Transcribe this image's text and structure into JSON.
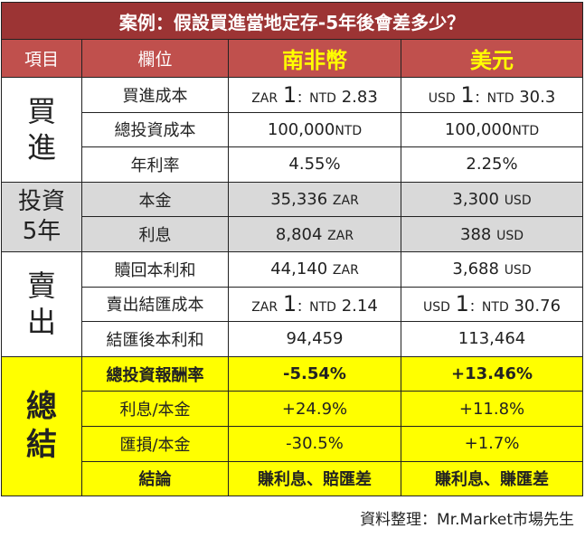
{
  "title": "案例：假設買進當地定存-5年後會差多少？",
  "headers": {
    "item": "項目",
    "field": "欄位",
    "zar": "南非幣",
    "usd": "美元"
  },
  "groups": {
    "buy": "買\n進",
    "invest": "投資\n5年",
    "sell": "賣\n出",
    "summary": "總\n結"
  },
  "rows": [
    {
      "field": "買進成本",
      "zar": {
        "pre": "ZAR",
        "num": "1",
        "mid": "：NTD",
        "val": "2.83"
      },
      "usd": {
        "pre": "USD",
        "num": "1",
        "mid": "：NTD",
        "val": "30.3"
      }
    },
    {
      "field": "總投資成本",
      "zar": {
        "val": "100,000",
        "unit": "NTD"
      },
      "usd": {
        "val": "100,000",
        "unit": "NTD"
      }
    },
    {
      "field": "年利率",
      "zar": "4.55%",
      "usd": "2.25%"
    },
    {
      "field": "本金",
      "zar": {
        "val": "35,336",
        "unit": "ZAR"
      },
      "usd": {
        "val": "3,300",
        "unit": "USD"
      }
    },
    {
      "field": "利息",
      "zar": {
        "val": "8,804",
        "unit": "ZAR"
      },
      "usd": {
        "val": "388",
        "unit": "USD"
      }
    },
    {
      "field": "贖回本利和",
      "zar": {
        "val": "44,140",
        "unit": "ZAR"
      },
      "usd": {
        "val": "3,688",
        "unit": "USD"
      }
    },
    {
      "field": "賣出結匯成本",
      "zar": {
        "pre": "ZAR",
        "num": "1",
        "mid": "：NTD",
        "val": "2.14"
      },
      "usd": {
        "pre": "USD",
        "num": "1",
        "mid": "：NTD",
        "val": "30.76"
      }
    },
    {
      "field": "結匯後本利和",
      "zar": "94,459",
      "usd": "113,464"
    },
    {
      "field": "總投資報酬率",
      "zar": "-5.54%",
      "usd": "+13.46%"
    },
    {
      "field": "利息/本金",
      "zar": "+24.9%",
      "usd": "+11.8%"
    },
    {
      "field": "匯損/本金",
      "zar": "-30.5%",
      "usd": "+1.7%"
    },
    {
      "field": "結論",
      "zar": "賺利息、賠匯差",
      "usd": "賺利息、賺匯差"
    }
  ],
  "caption": "資料整理：Mr.Market市場先生"
}
